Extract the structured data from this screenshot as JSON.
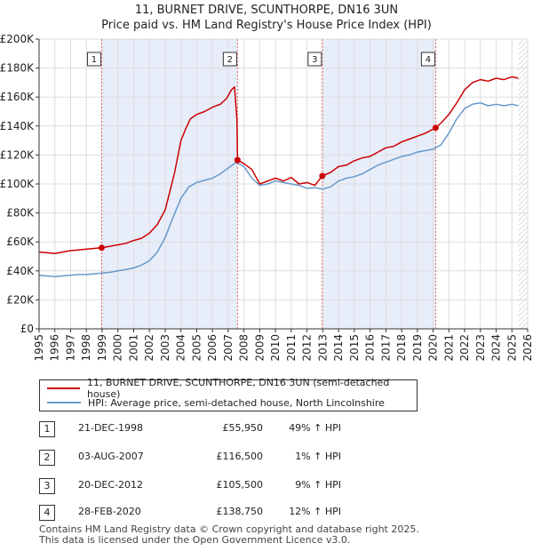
{
  "title_line1": "11, BURNET DRIVE, SCUNTHORPE, DN16 3UN",
  "title_line2": "Price paid vs. HM Land Registry's House Price Index (HPI)",
  "chart_data": {
    "type": "line",
    "xlim": [
      1995,
      2026
    ],
    "ylim": [
      0,
      200000
    ],
    "x_ticks": [
      1995,
      1996,
      1997,
      1998,
      1999,
      2000,
      2001,
      2002,
      2003,
      2004,
      2005,
      2006,
      2007,
      2008,
      2009,
      2010,
      2011,
      2012,
      2013,
      2014,
      2015,
      2016,
      2017,
      2018,
      2019,
      2020,
      2021,
      2022,
      2023,
      2024,
      2025,
      2026
    ],
    "y_ticks": [
      0,
      20000,
      40000,
      60000,
      80000,
      100000,
      120000,
      140000,
      160000,
      180000,
      200000
    ],
    "y_tick_labels": [
      "£0",
      "£20K",
      "£40K",
      "£60K",
      "£80K",
      "£100K",
      "£120K",
      "£140K",
      "£160K",
      "£180K",
      "£200K"
    ],
    "series": [
      {
        "name": "11, BURNET DRIVE, SCUNTHORPE, DN16 3UN (semi-detached house)",
        "color": "#cc0000",
        "x": [
          1995.0,
          1995.5,
          1996.0,
          1996.5,
          1997.0,
          1997.5,
          1998.0,
          1998.5,
          1998.97,
          1999.5,
          2000.0,
          2000.5,
          2001.0,
          2001.5,
          2002.0,
          2002.5,
          2003.0,
          2003.3,
          2003.6,
          2004.0,
          2004.3,
          2004.6,
          2005.0,
          2005.5,
          2006.0,
          2006.5,
          2006.9,
          2007.2,
          2007.4,
          2007.55,
          2007.59,
          2008.0,
          2008.5,
          2009.0,
          2009.5,
          2010.0,
          2010.5,
          2011.0,
          2011.5,
          2012.0,
          2012.5,
          2012.97,
          2013.5,
          2014.0,
          2014.5,
          2015.0,
          2015.5,
          2016.0,
          2016.5,
          2017.0,
          2017.5,
          2018.0,
          2018.5,
          2019.0,
          2019.5,
          2020.16,
          2020.5,
          2021.0,
          2021.5,
          2022.0,
          2022.5,
          2023.0,
          2023.5,
          2024.0,
          2024.5,
          2025.0,
          2025.4
        ],
        "y": [
          53000,
          52500,
          52000,
          53000,
          54000,
          54500,
          55000,
          55500,
          55950,
          57000,
          58000,
          59000,
          61000,
          62500,
          66000,
          72000,
          82000,
          95000,
          108000,
          130000,
          138000,
          145000,
          148000,
          150000,
          153000,
          155000,
          159000,
          165000,
          167000,
          145000,
          116500,
          114000,
          110000,
          100000,
          102000,
          104000,
          102000,
          104500,
          100000,
          101000,
          99000,
          105500,
          108000,
          112000,
          113000,
          116000,
          118000,
          119000,
          122000,
          125000,
          126000,
          129000,
          131000,
          133000,
          135000,
          138750,
          142000,
          148000,
          156000,
          165000,
          170000,
          172000,
          171000,
          173000,
          172000,
          174000,
          173000
        ]
      },
      {
        "name": "HPI: Average price, semi-detached house, North Lincolnshire",
        "color": "#6699cc",
        "x": [
          1995.0,
          1995.5,
          1996.0,
          1996.5,
          1997.0,
          1997.5,
          1998.0,
          1998.5,
          1999.0,
          1999.5,
          2000.0,
          2000.5,
          2001.0,
          2001.5,
          2002.0,
          2002.5,
          2003.0,
          2003.5,
          2004.0,
          2004.5,
          2005.0,
          2005.5,
          2006.0,
          2006.5,
          2007.0,
          2007.5,
          2008.0,
          2008.5,
          2009.0,
          2009.5,
          2010.0,
          2010.5,
          2011.0,
          2011.5,
          2012.0,
          2012.5,
          2013.0,
          2013.5,
          2014.0,
          2014.5,
          2015.0,
          2015.5,
          2016.0,
          2016.5,
          2017.0,
          2017.5,
          2018.0,
          2018.5,
          2019.0,
          2019.5,
          2020.0,
          2020.5,
          2021.0,
          2021.5,
          2022.0,
          2022.5,
          2023.0,
          2023.5,
          2024.0,
          2024.5,
          2025.0,
          2025.4
        ],
        "y": [
          37000,
          36500,
          36000,
          36500,
          37000,
          37500,
          37500,
          38000,
          38500,
          39000,
          40000,
          41000,
          42000,
          44000,
          47000,
          53000,
          63000,
          77000,
          90000,
          98000,
          101000,
          102500,
          104000,
          107000,
          111000,
          115000,
          112000,
          104000,
          99000,
          100000,
          102000,
          101000,
          100000,
          99000,
          97000,
          97500,
          96500,
          98000,
          102000,
          104000,
          105000,
          107000,
          110000,
          113000,
          115000,
          117000,
          119000,
          120000,
          122000,
          123000,
          124000,
          127000,
          135000,
          145000,
          152000,
          155000,
          156000,
          154000,
          155000,
          154000,
          155000,
          154000
        ]
      }
    ],
    "annotations": [
      {
        "label": "1",
        "x": 1998.97
      },
      {
        "label": "2",
        "x": 2007.59
      },
      {
        "label": "3",
        "x": 2012.97
      },
      {
        "label": "4",
        "x": 2020.16
      }
    ],
    "sales_points": [
      {
        "x": 1998.97,
        "y": 55950
      },
      {
        "x": 2007.59,
        "y": 116500
      },
      {
        "x": 2012.97,
        "y": 105500
      },
      {
        "x": 2020.16,
        "y": 138750
      }
    ],
    "forecast_start": 2025.4
  },
  "legend": {
    "property_label": "11, BURNET DRIVE, SCUNTHORPE, DN16 3UN (semi-detached house)",
    "hpi_label": "HPI: Average price, semi-detached house, North Lincolnshire",
    "property_color": "#cc0000",
    "hpi_color": "#6699cc"
  },
  "sales": [
    {
      "num": "1",
      "date": "21-DEC-1998",
      "price": "£55,950",
      "hpi": "49% ↑ HPI"
    },
    {
      "num": "2",
      "date": "03-AUG-2007",
      "price": "£116,500",
      "hpi": "1% ↑ HPI"
    },
    {
      "num": "3",
      "date": "20-DEC-2012",
      "price": "£105,500",
      "hpi": "9% ↑ HPI"
    },
    {
      "num": "4",
      "date": "28-FEB-2020",
      "price": "£138,750",
      "hpi": "12% ↑ HPI"
    }
  ],
  "footer_line1": "Contains HM Land Registry data © Crown copyright and database right 2025.",
  "footer_line2": "This data is licensed under the Open Government Licence v3.0."
}
